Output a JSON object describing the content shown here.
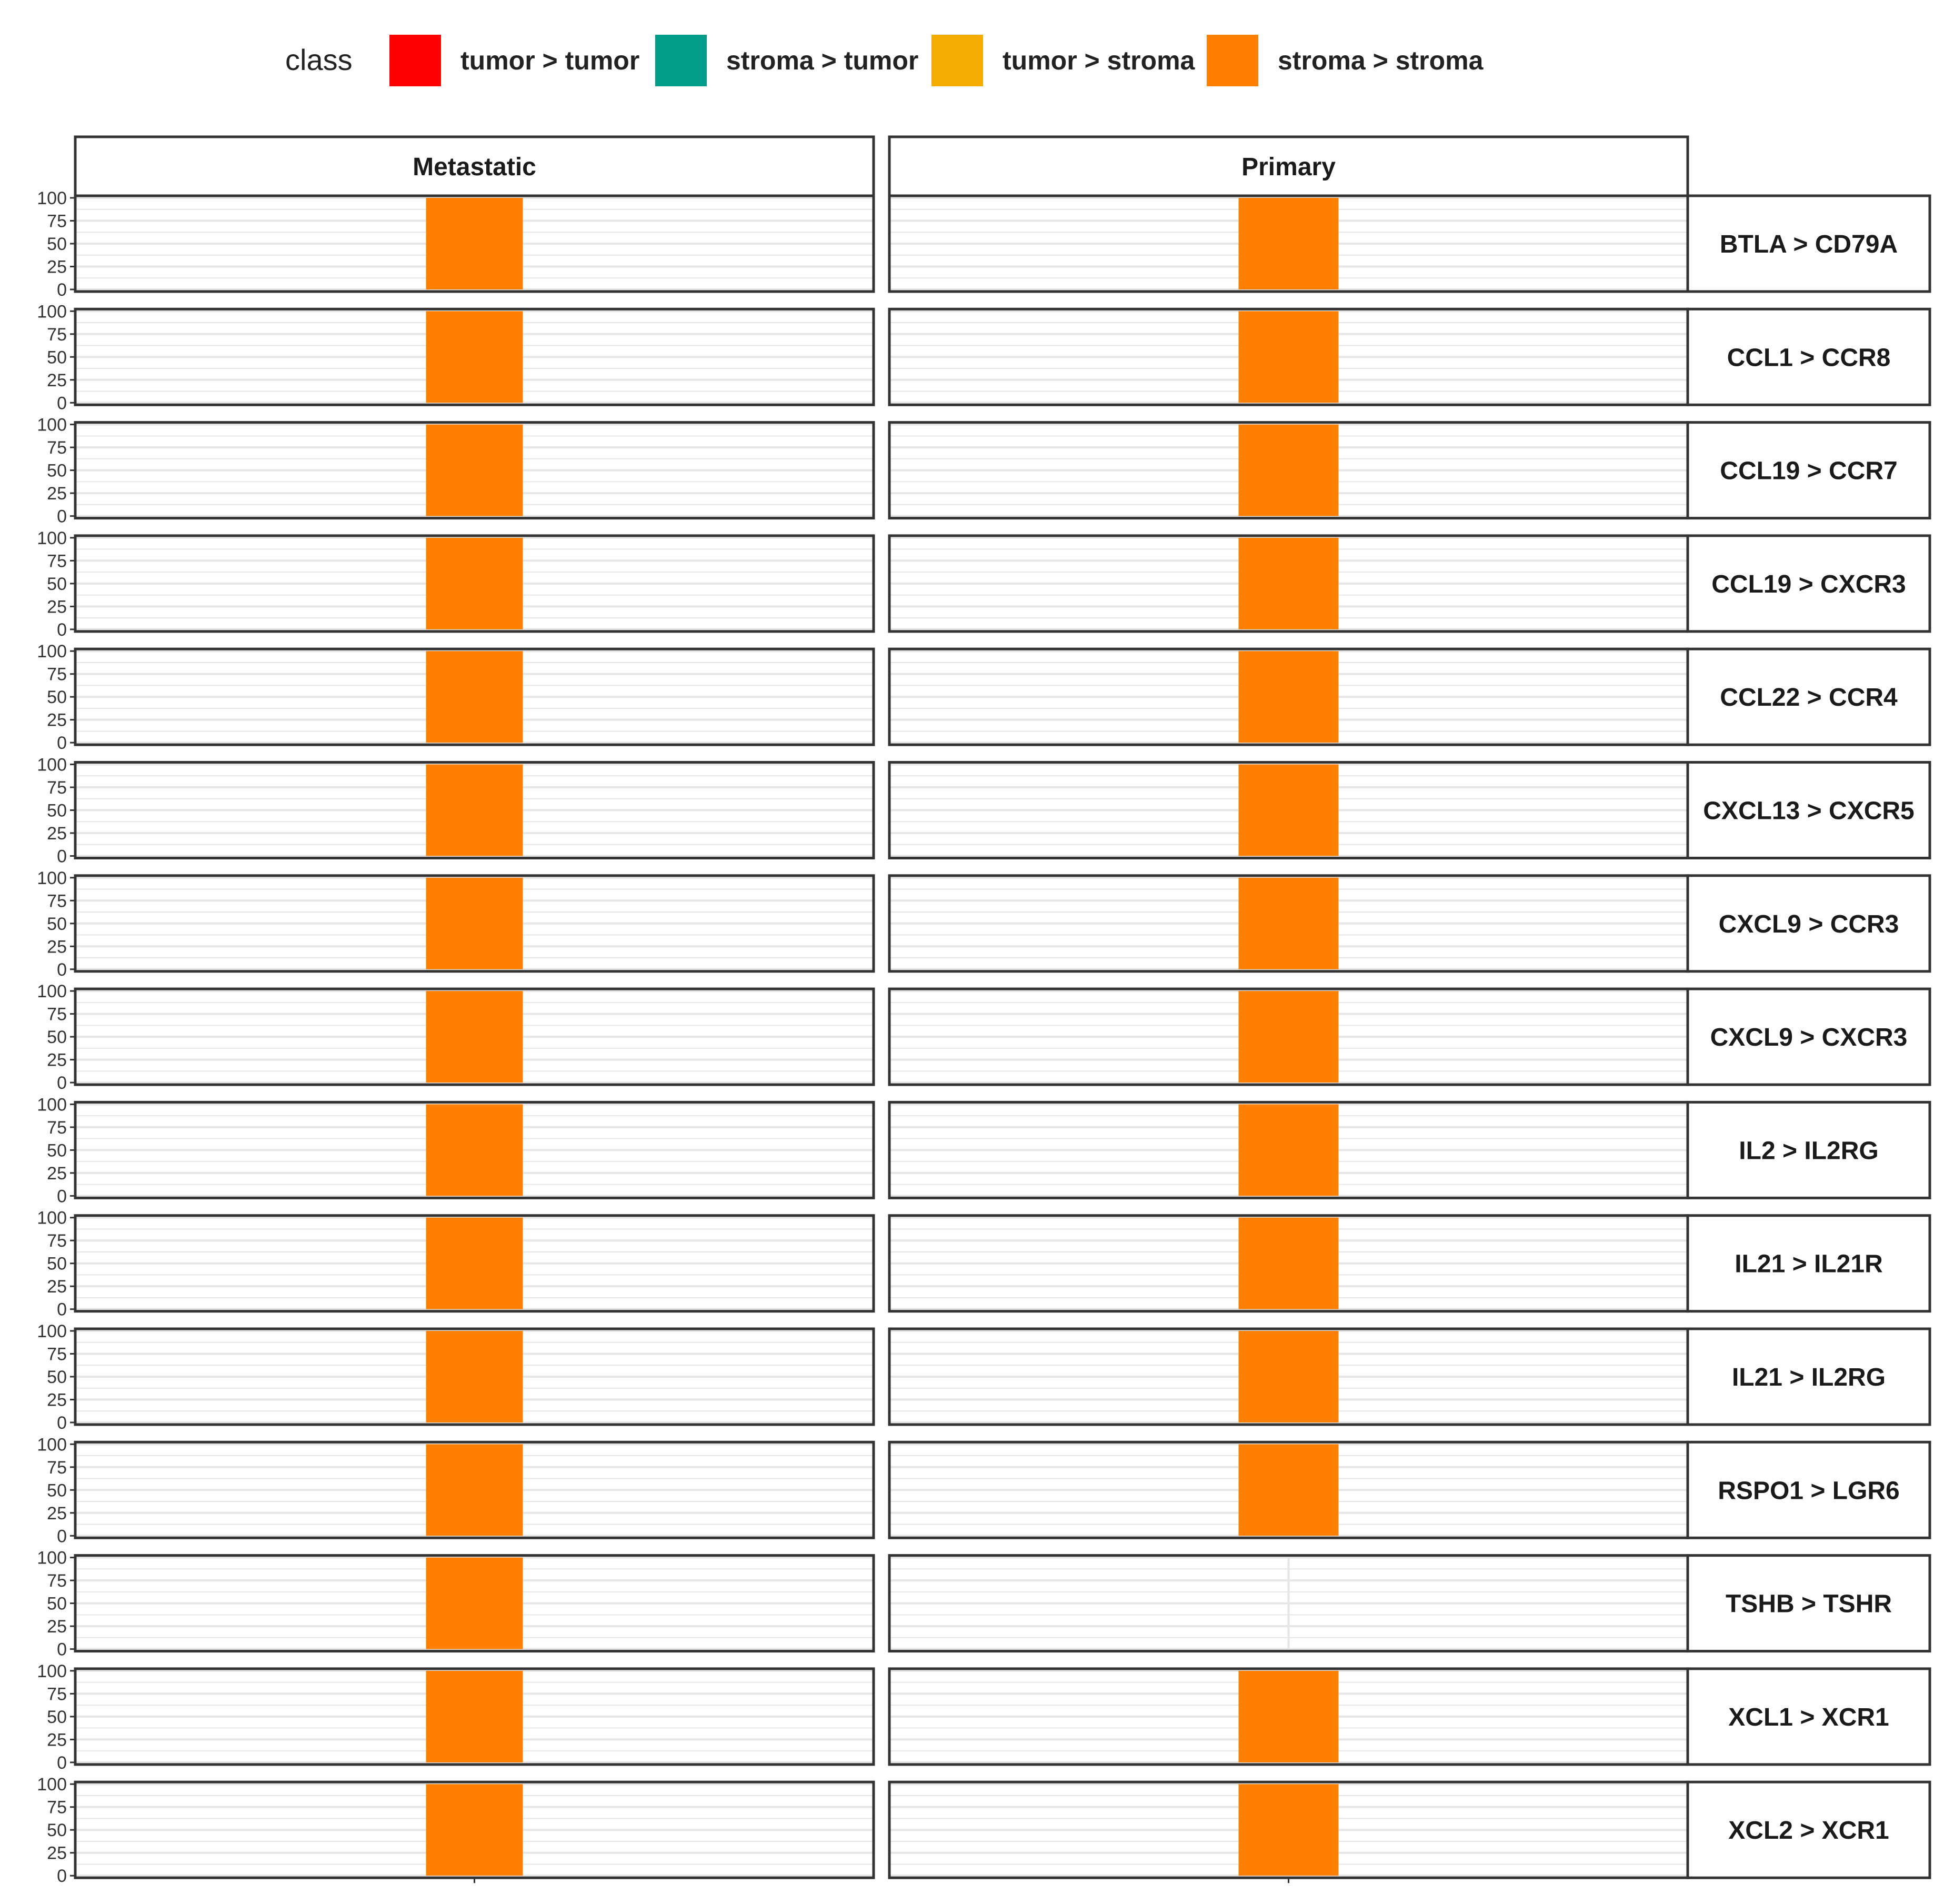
{
  "chart_data": {
    "type": "bar",
    "legend": {
      "title": "class",
      "position": "top",
      "entries": [
        {
          "label": "tumor > tumor",
          "color": "#ff0000"
        },
        {
          "label": "stroma > tumor",
          "color": "#009e8a"
        },
        {
          "label": "tumor > stroma",
          "color": "#f4ac00"
        },
        {
          "label": "stroma > stroma",
          "color": "#ff8000"
        }
      ]
    },
    "columns": [
      "Metastatic",
      "Primary"
    ],
    "rows": [
      "BTLA > CD79A",
      "CCL1 > CCR8",
      "CCL19 > CCR7",
      "CCL19 > CXCR3",
      "CCL22 > CCR4",
      "CXCL13 > CXCR5",
      "CXCL9 > CCR3",
      "CXCL9 > CXCR3",
      "IL2 > IL2RG",
      "IL21 > IL21R",
      "IL21 > IL2RG",
      "RSPO1 > LGR6",
      "TSHB > TSHR",
      "XCL1 > XCR1",
      "XCL2 > XCR1"
    ],
    "yticks": [
      "0",
      "25",
      "50",
      "75",
      "100"
    ],
    "ylim": [
      0,
      100
    ],
    "grid": true,
    "series": [
      {
        "name": "stroma > stroma",
        "color": "#ff8000",
        "values": [
          [
            100,
            100
          ],
          [
            100,
            100
          ],
          [
            100,
            100
          ],
          [
            100,
            100
          ],
          [
            100,
            100
          ],
          [
            100,
            100
          ],
          [
            100,
            100
          ],
          [
            100,
            100
          ],
          [
            100,
            100
          ],
          [
            100,
            100
          ],
          [
            100,
            100
          ],
          [
            100,
            100
          ],
          [
            100,
            0
          ],
          [
            100,
            100
          ],
          [
            100,
            100
          ]
        ]
      }
    ]
  }
}
